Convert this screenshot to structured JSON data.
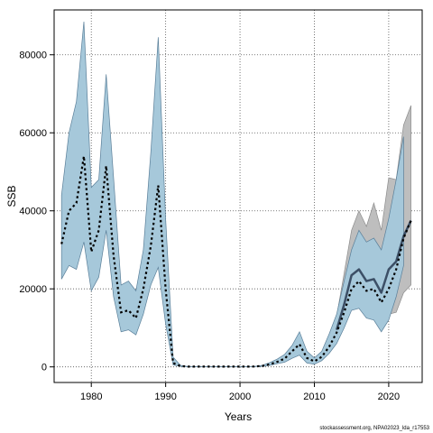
{
  "chart_data": {
    "type": "line",
    "xlabel": "Years",
    "ylabel": "SSB",
    "xlim": [
      1975,
      2024.5
    ],
    "ylim": [
      -4000,
      91500
    ],
    "x_ticks": [
      1980,
      1990,
      2000,
      2010,
      2020
    ],
    "y_ticks": [
      0,
      20000,
      40000,
      60000,
      80000
    ],
    "grid": "dotted",
    "footer": "stockassessment.org, NPA02023_lda_r17553",
    "colors": {
      "gray_band": "#bebebe",
      "blue_band": "#a6c8da",
      "band_edge": "#5a7f99",
      "dark_line": "#3c4f66",
      "dotted_line": "#000000"
    },
    "series": [
      {
        "role": "gray-confidence-band",
        "x": [
          2013,
          2014,
          2015,
          2016,
          2017,
          2018,
          2019,
          2020,
          2021,
          2022,
          2023
        ],
        "lower": [
          7000,
          11000,
          16500,
          17000,
          13500,
          12500,
          10000,
          13500,
          14000,
          19000,
          21000
        ],
        "upper": [
          13000,
          24000,
          35000,
          40000,
          36000,
          42000,
          35000,
          48500,
          48000,
          62000,
          67000
        ]
      },
      {
        "role": "blue-confidence-band",
        "x": [
          1976,
          1977,
          1978,
          1979,
          1980,
          1981,
          1982,
          1983,
          1984,
          1985,
          1986,
          1987,
          1988,
          1989,
          1990,
          1991,
          1992,
          1993,
          1994,
          1995,
          1996,
          1997,
          1998,
          1999,
          2000,
          2001,
          2002,
          2003,
          2004,
          2005,
          2006,
          2007,
          2008,
          2009,
          2010,
          2011,
          2012,
          2013,
          2014,
          2015,
          2016,
          2017,
          2018,
          2019,
          2020,
          2021,
          2022
        ],
        "lower": [
          22500,
          26000,
          25000,
          32000,
          19500,
          23000,
          35000,
          18000,
          9000,
          9500,
          8200,
          13500,
          21000,
          25500,
          11000,
          500,
          100,
          50,
          50,
          50,
          50,
          50,
          50,
          50,
          50,
          50,
          80,
          150,
          400,
          800,
          1200,
          2200,
          3000,
          1000,
          700,
          1600,
          3500,
          6000,
          10000,
          14500,
          15000,
          12500,
          12000,
          9000,
          12000,
          18000,
          26000
        ],
        "upper": [
          44000,
          60000,
          68000,
          88500,
          46000,
          48000,
          75000,
          48500,
          21000,
          22000,
          19500,
          30000,
          55000,
          84500,
          38000,
          2500,
          400,
          100,
          80,
          80,
          80,
          80,
          80,
          80,
          80,
          80,
          150,
          400,
          1100,
          2000,
          3200,
          5500,
          9000,
          4000,
          2300,
          4000,
          8500,
          13500,
          22000,
          30000,
          35000,
          32000,
          33000,
          30000,
          38000,
          48000,
          59000
        ]
      },
      {
        "role": "dark-estimate-line",
        "x": [
          2013,
          2014,
          2015,
          2016,
          2017,
          2018,
          2019,
          2020,
          2021,
          2022,
          2023
        ],
        "y": [
          9500,
          16000,
          23500,
          25000,
          22000,
          22500,
          19000,
          25000,
          27000,
          33500,
          37500
        ]
      },
      {
        "role": "dotted-estimate-line",
        "x": [
          1976,
          1977,
          1978,
          1979,
          1980,
          1981,
          1982,
          1983,
          1984,
          1985,
          1986,
          1987,
          1988,
          1989,
          1990,
          1991,
          1992,
          1993,
          1994,
          1995,
          1996,
          1997,
          1998,
          1999,
          2000,
          2001,
          2002,
          2003,
          2004,
          2005,
          2006,
          2007,
          2008,
          2009,
          2010,
          2011,
          2012,
          2013,
          2014,
          2015,
          2016,
          2017,
          2018,
          2019,
          2020,
          2021,
          2022,
          2023
        ],
        "y": [
          31500,
          40000,
          42000,
          54000,
          29500,
          35000,
          51500,
          28500,
          14000,
          14500,
          12500,
          20000,
          31000,
          46500,
          20000,
          1000,
          200,
          80,
          60,
          60,
          60,
          60,
          60,
          60,
          60,
          60,
          100,
          250,
          650,
          1300,
          2100,
          4000,
          5800,
          2300,
          1400,
          2600,
          5200,
          8800,
          14000,
          20000,
          22000,
          19500,
          20000,
          16500,
          20000,
          25000,
          33000,
          37500
        ]
      }
    ]
  }
}
